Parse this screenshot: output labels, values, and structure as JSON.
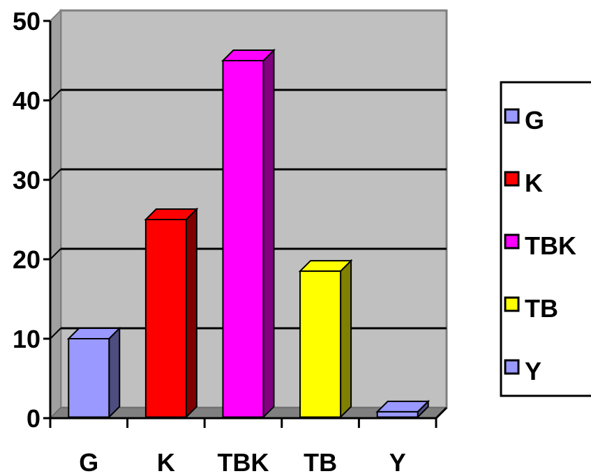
{
  "chart_data": {
    "type": "bar",
    "title": "",
    "xlabel": "",
    "ylabel": "",
    "categories": [
      "G",
      "K",
      "TBK",
      "TB",
      "Y"
    ],
    "values": [
      10,
      25,
      45,
      18.5,
      0.8
    ],
    "ylim": [
      0,
      50
    ],
    "yticks": [
      "0",
      "10",
      "20",
      "30",
      "40",
      "50"
    ],
    "grid": true,
    "legend_position": "right",
    "legend": [
      "G",
      "K",
      "TBK",
      "TB",
      "Y"
    ],
    "colors": [
      "#9999ff",
      "#ff0000",
      "#ff00ff",
      "#ffff00",
      "#9999ff"
    ],
    "side_colors": [
      "#4d4d80",
      "#800000",
      "#800080",
      "#808000",
      "#4d4d80"
    ],
    "wall_color": "#c0c0c0",
    "floor_color": "#808080"
  }
}
